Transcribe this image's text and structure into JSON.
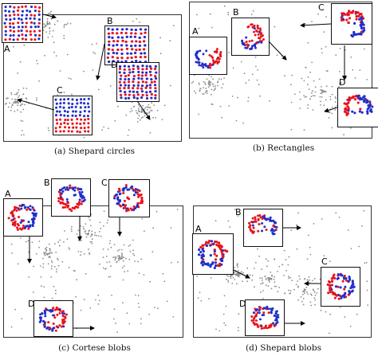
{
  "figure": {
    "panels": [
      {
        "id": "a",
        "caption": "(a) Shepard circles",
        "insets": [
          {
            "label": "A",
            "pattern": "grid-mixed"
          },
          {
            "label": "B",
            "pattern": "stripes"
          },
          {
            "label": "C",
            "pattern": "grid-split"
          },
          {
            "label": "D",
            "pattern": "stripes-dense"
          }
        ]
      },
      {
        "id": "b",
        "caption": "(b) Rectangles",
        "insets": [
          {
            "label": "A",
            "pattern": "arc"
          },
          {
            "label": "B",
            "pattern": "arc"
          },
          {
            "label": "C",
            "pattern": "arc"
          },
          {
            "label": "D",
            "pattern": "arc"
          }
        ]
      },
      {
        "id": "c",
        "caption": "(c) Cortese blobs",
        "insets": [
          {
            "label": "A",
            "pattern": "ring"
          },
          {
            "label": "B",
            "pattern": "ring"
          },
          {
            "label": "C",
            "pattern": "ring"
          },
          {
            "label": "D",
            "pattern": "ring"
          }
        ]
      },
      {
        "id": "d",
        "caption": "(d) Shepard blobs",
        "insets": [
          {
            "label": "A",
            "pattern": "ring"
          },
          {
            "label": "B",
            "pattern": "arc"
          },
          {
            "label": "C",
            "pattern": "ring"
          },
          {
            "label": "D",
            "pattern": "ring"
          }
        ]
      }
    ],
    "colors": {
      "red": "#e8141b",
      "blue": "#1f2fc9",
      "grey": "#8c8c8c",
      "frame": "#333333"
    }
  }
}
